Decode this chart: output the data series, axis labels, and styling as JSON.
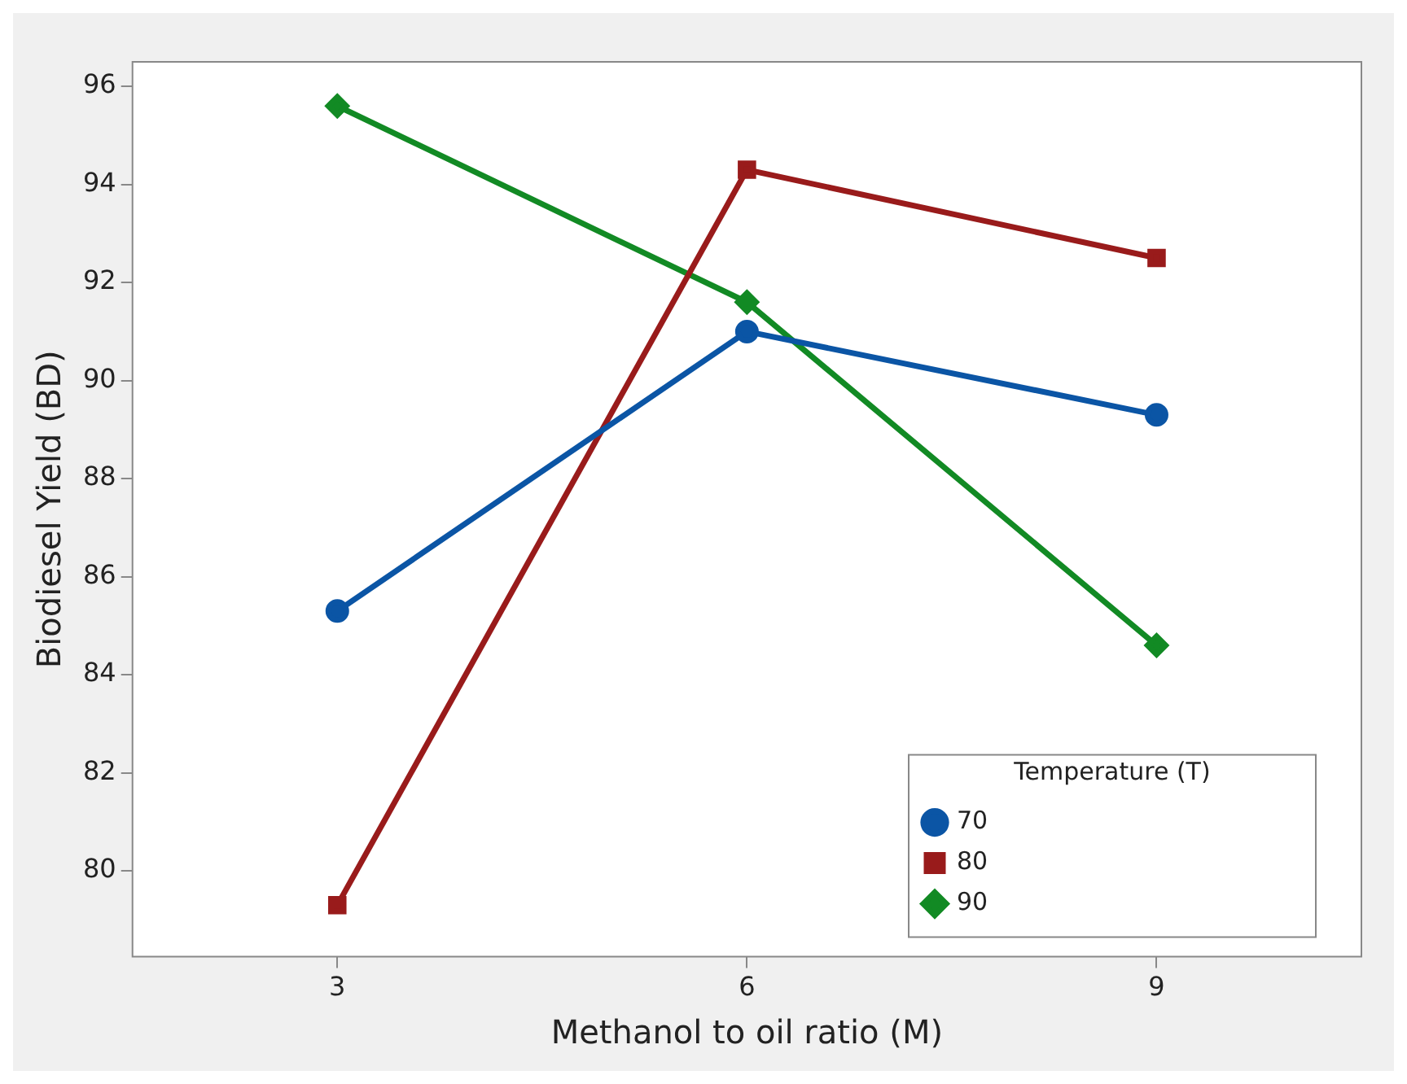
{
  "chart_data": {
    "type": "line",
    "xlabel": "Methanol to oil ratio (M)",
    "ylabel": "Biodiesel Yield (BD)",
    "legend_title": "Temperature (T)",
    "legend": "bottom right",
    "grid": false,
    "line_style": "solid",
    "x": [
      3,
      6,
      9
    ],
    "xlim": [
      1.5,
      10.5
    ],
    "xticks": [
      3,
      6,
      9
    ],
    "ylim": [
      78.25,
      96.5
    ],
    "yticks": [
      80,
      82,
      84,
      86,
      88,
      90,
      92,
      94,
      96
    ],
    "series": [
      {
        "name": "70",
        "color": "#0b55a5",
        "marker": "circle",
        "values": [
          85.3,
          91.0,
          89.3
        ]
      },
      {
        "name": "80",
        "color": "#991b1b",
        "marker": "square",
        "values": [
          79.3,
          94.3,
          92.5
        ]
      },
      {
        "name": "90",
        "color": "#128a24",
        "marker": "diamond",
        "values": [
          95.6,
          91.6,
          84.6
        ]
      }
    ]
  }
}
